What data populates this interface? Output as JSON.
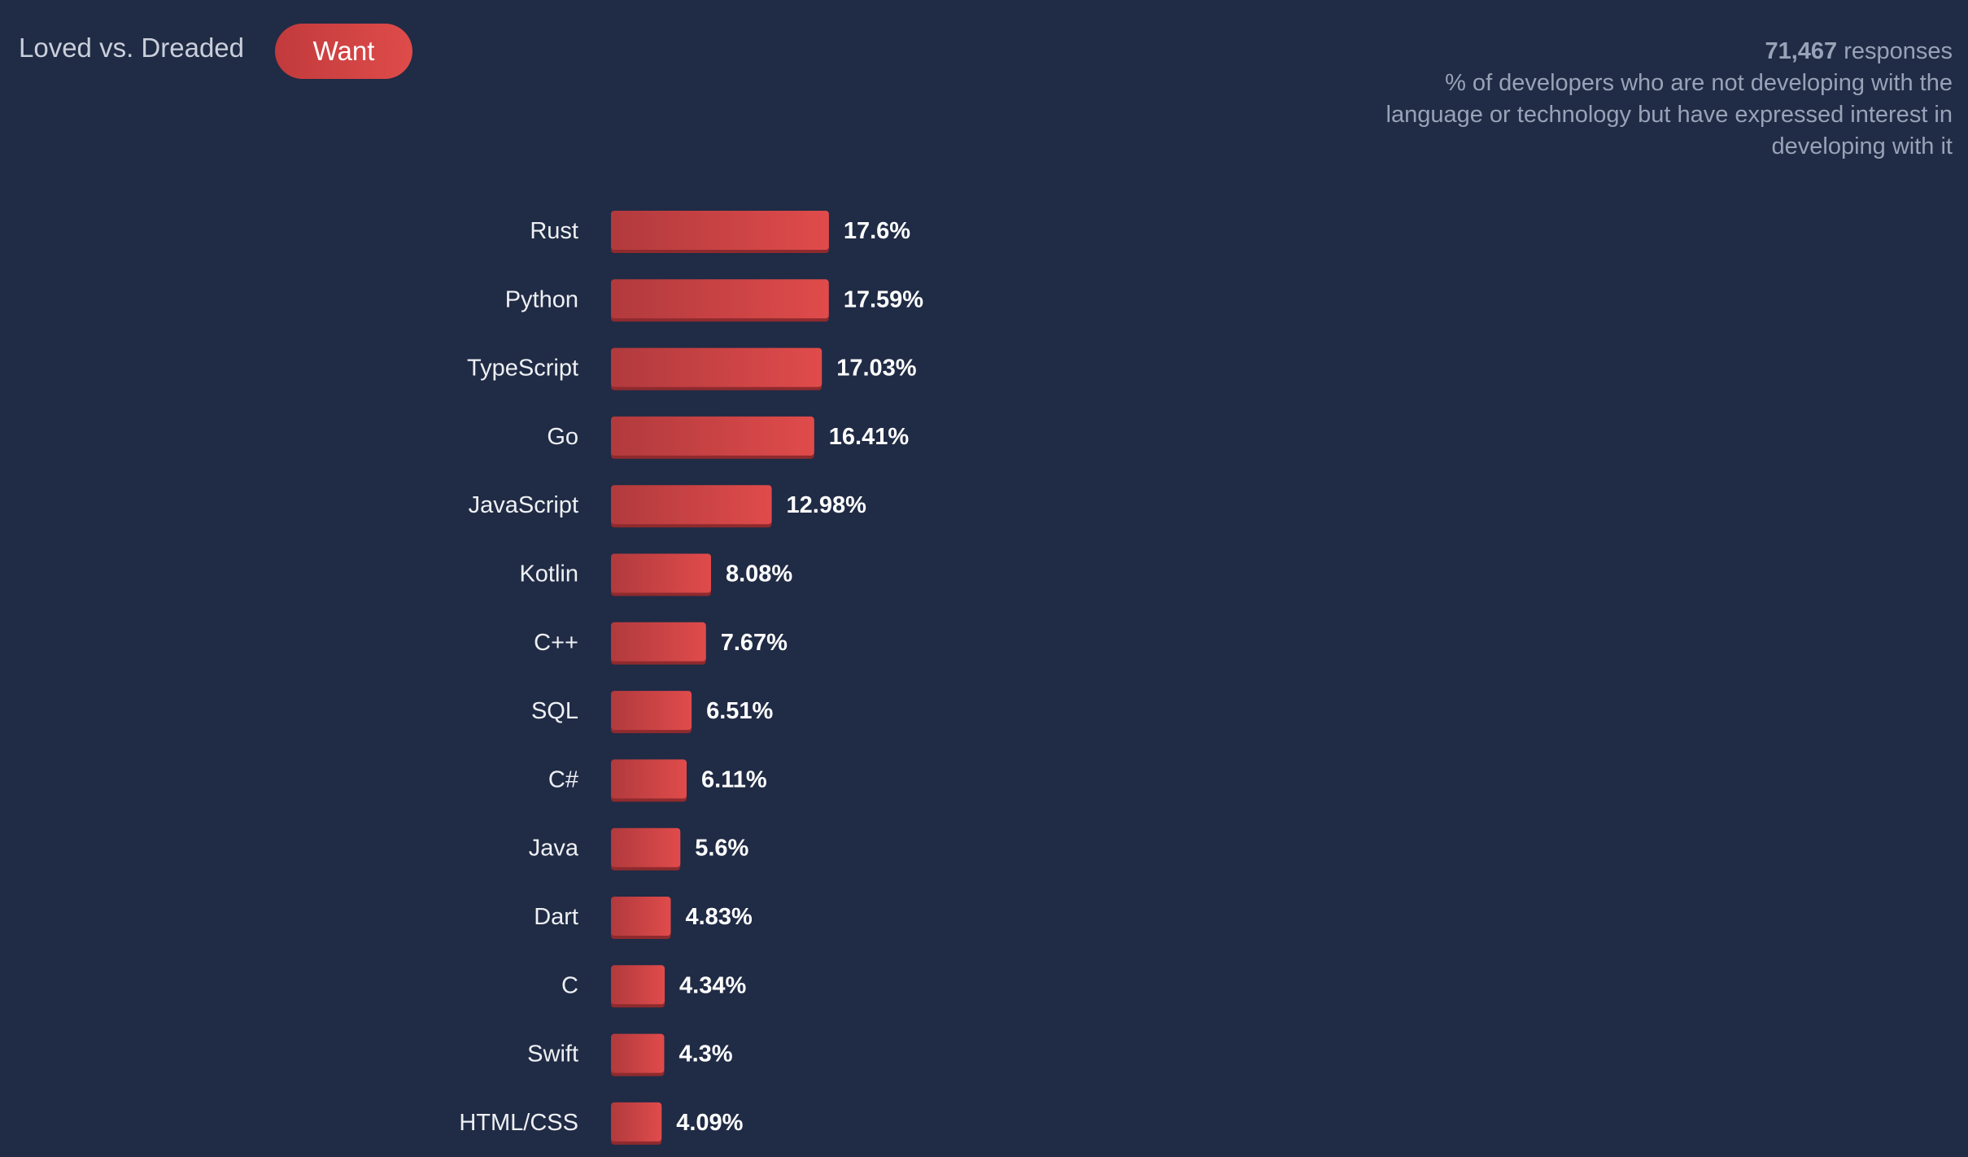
{
  "tabs": {
    "loved_label": "Loved vs. Dreaded",
    "want_label": "Want"
  },
  "summary": {
    "count": "71,467",
    "count_suffix": " responses",
    "description": "% of developers who are not developing with the language or technology but have expressed interest in developing with it"
  },
  "colors": {
    "background": "#202b45",
    "bar_start": "#b13a3d",
    "bar_end": "#e04b4b",
    "bar_shadow": "#8e2a2e"
  },
  "chart_data": {
    "type": "bar",
    "orientation": "horizontal",
    "categories": [
      "Rust",
      "Python",
      "TypeScript",
      "Go",
      "JavaScript",
      "Kotlin",
      "C++",
      "SQL",
      "C#",
      "Java",
      "Dart",
      "C",
      "Swift",
      "HTML/CSS"
    ],
    "values": [
      17.6,
      17.59,
      17.03,
      16.41,
      12.98,
      8.08,
      7.67,
      6.51,
      6.11,
      5.6,
      4.83,
      4.34,
      4.3,
      4.09
    ],
    "value_labels": [
      "17.6%",
      "17.59%",
      "17.03%",
      "16.41%",
      "12.98%",
      "8.08%",
      "7.67%",
      "6.51%",
      "6.11%",
      "5.6%",
      "4.83%",
      "4.34%",
      "4.3%",
      "4.09%"
    ],
    "unit": "%",
    "grid": false,
    "legend": "none"
  }
}
